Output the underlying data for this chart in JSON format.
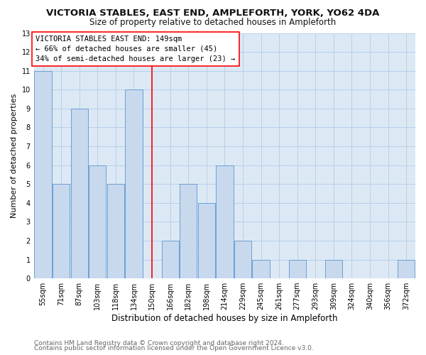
{
  "title": "VICTORIA STABLES, EAST END, AMPLEFORTH, YORK, YO62 4DA",
  "subtitle": "Size of property relative to detached houses in Ampleforth",
  "xlabel": "Distribution of detached houses by size in Ampleforth",
  "ylabel": "Number of detached properties",
  "footer_line1": "Contains HM Land Registry data © Crown copyright and database right 2024.",
  "footer_line2": "Contains public sector information licensed under the Open Government Licence v3.0.",
  "annotation_line1": "VICTORIA STABLES EAST END: 149sqm",
  "annotation_line2": "← 66% of detached houses are smaller (45)",
  "annotation_line3": "34% of semi-detached houses are larger (23) →",
  "bar_labels": [
    "55sqm",
    "71sqm",
    "87sqm",
    "103sqm",
    "118sqm",
    "134sqm",
    "150sqm",
    "166sqm",
    "182sqm",
    "198sqm",
    "214sqm",
    "229sqm",
    "245sqm",
    "261sqm",
    "277sqm",
    "293sqm",
    "309sqm",
    "324sqm",
    "340sqm",
    "356sqm",
    "372sqm"
  ],
  "bar_values": [
    11,
    5,
    9,
    6,
    5,
    10,
    0,
    2,
    5,
    4,
    6,
    2,
    1,
    0,
    1,
    0,
    1,
    0,
    0,
    0,
    1
  ],
  "bar_color": "#c8d9ee",
  "bar_edge_color": "#6b9fd4",
  "red_line_index": 6,
  "ylim": [
    0,
    13
  ],
  "yticks": [
    0,
    1,
    2,
    3,
    4,
    5,
    6,
    7,
    8,
    9,
    10,
    11,
    12,
    13
  ],
  "background_color": "#ffffff",
  "plot_bg_color": "#dce9f5",
  "grid_color": "#b8cfe8",
  "title_fontsize": 9.5,
  "subtitle_fontsize": 8.5,
  "xlabel_fontsize": 8.5,
  "ylabel_fontsize": 8,
  "annotation_fontsize": 7.5,
  "tick_fontsize": 7,
  "footer_fontsize": 6.5
}
